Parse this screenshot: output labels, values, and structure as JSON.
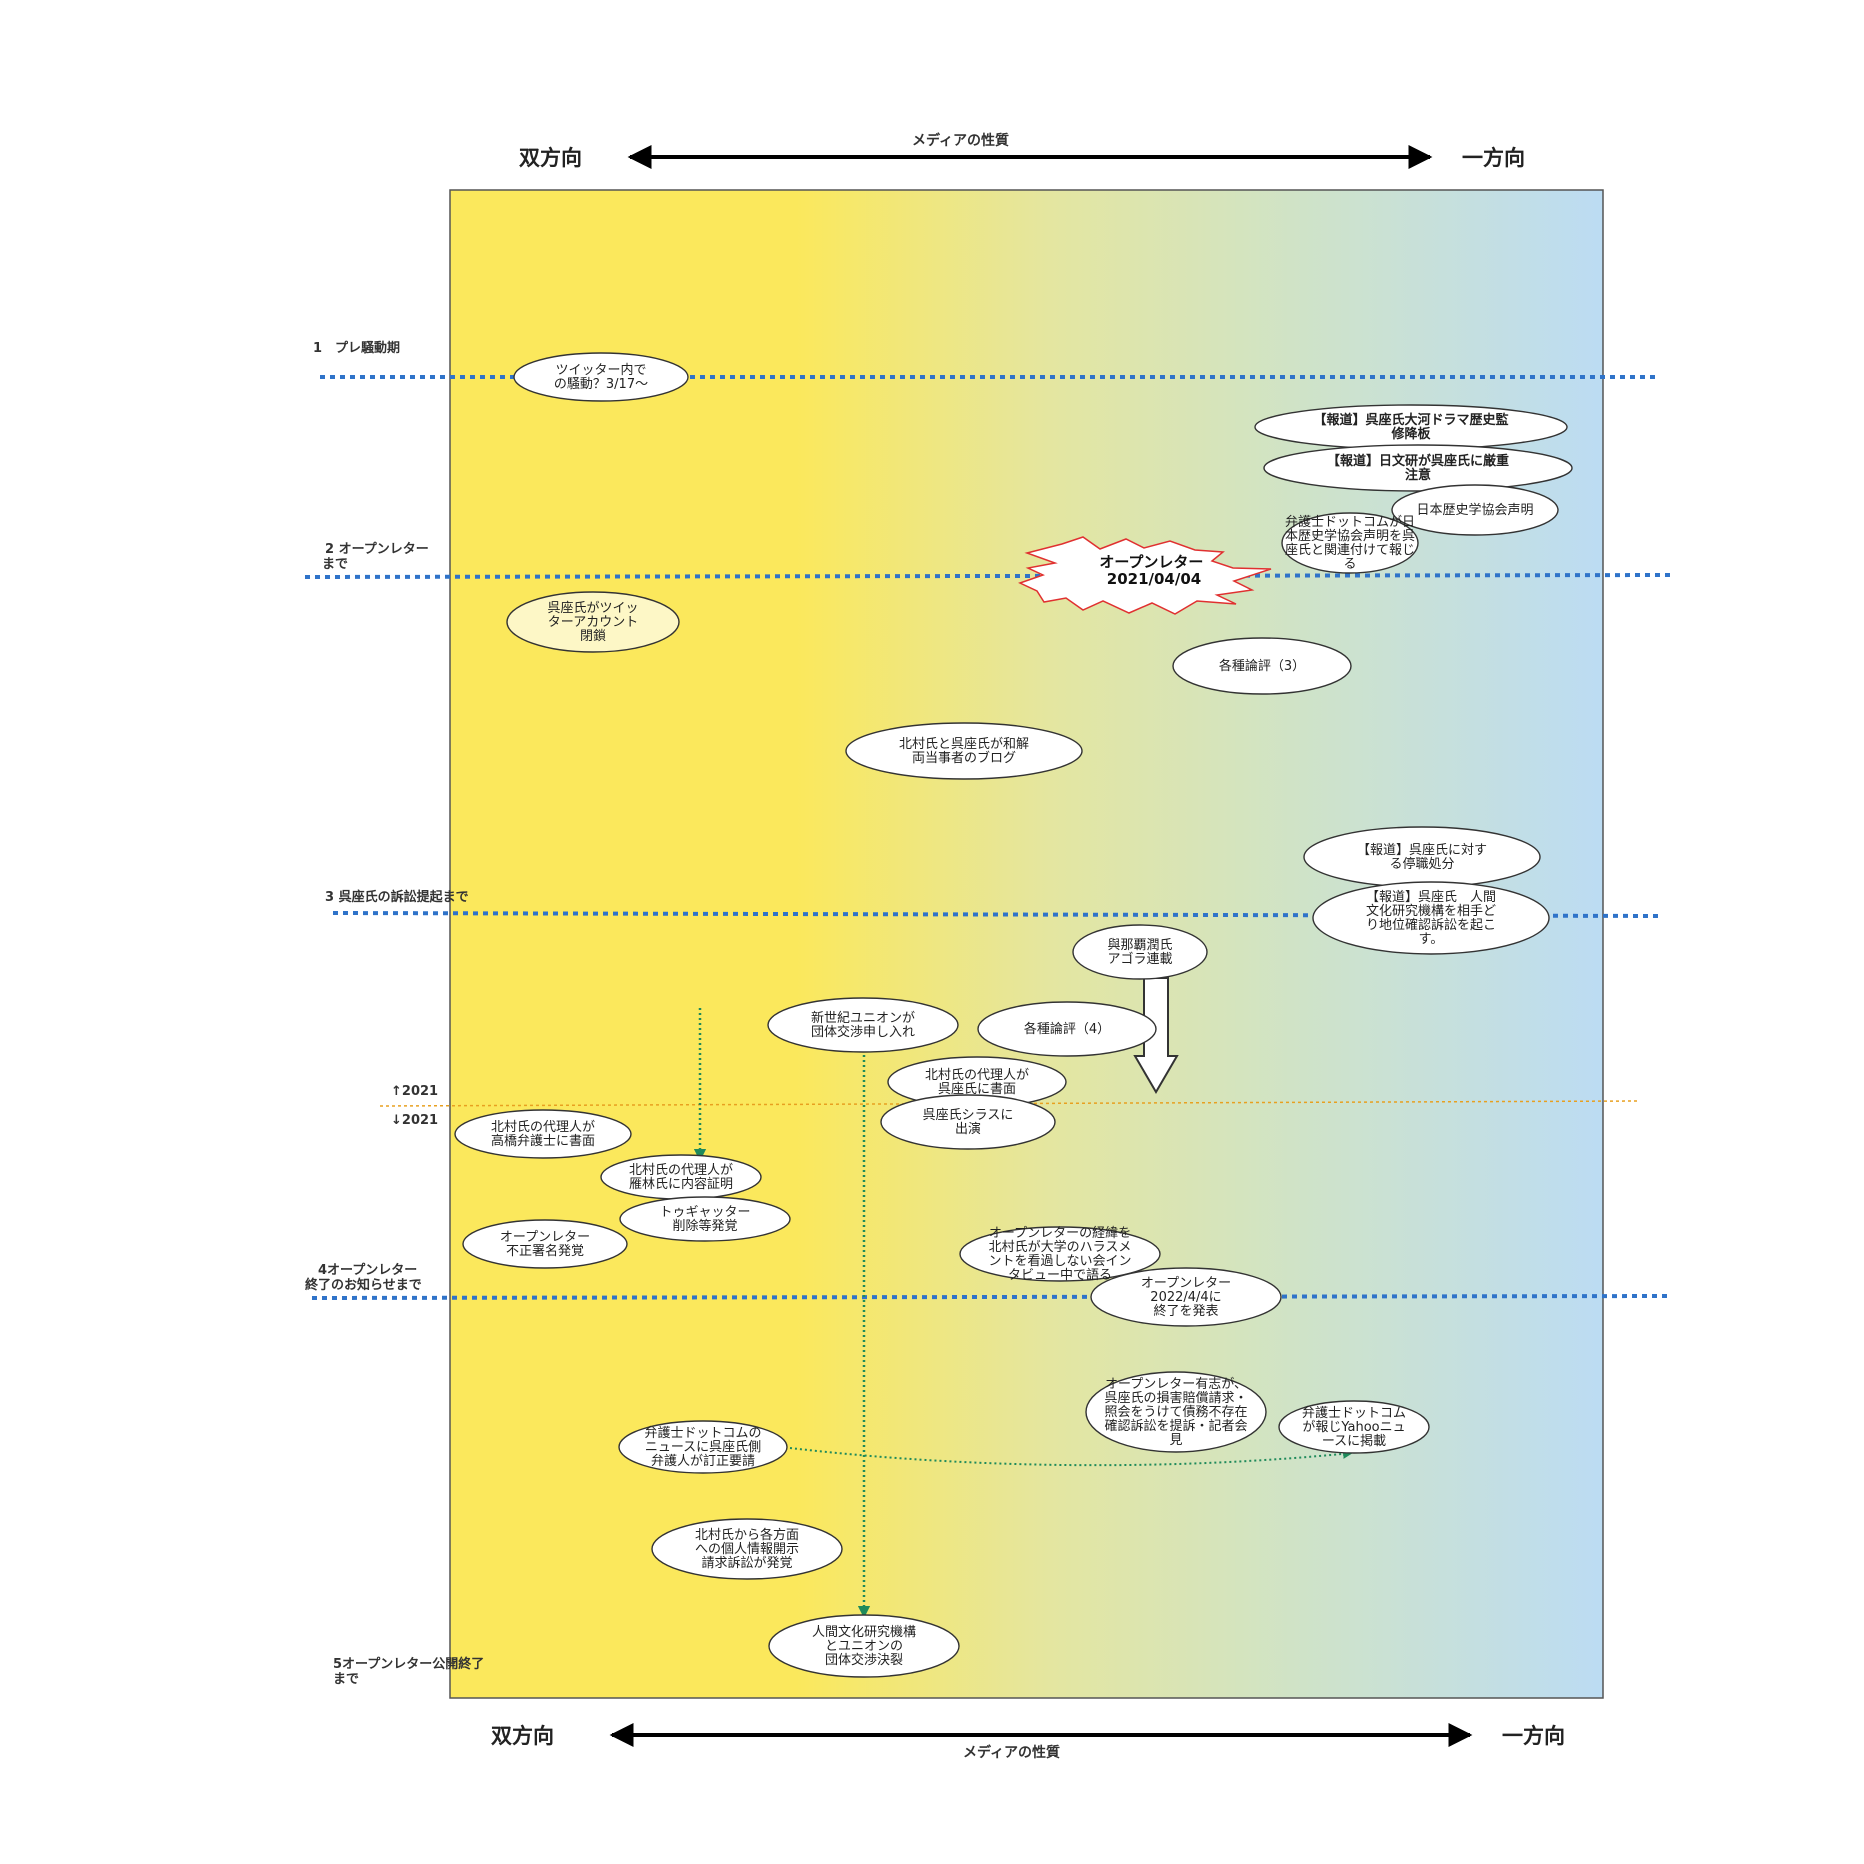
{
  "axis": {
    "top": {
      "left": "双方向",
      "right": "一方向",
      "middle": "メディアの性質"
    },
    "bottom": {
      "left": "双方向",
      "right": "一方向",
      "middle": "メディアの性質"
    }
  },
  "colors": {
    "two_way": "#fbe85c",
    "one_way": "#bfdff3",
    "phase_line": "#2f73c9",
    "year_line": "#e8a020",
    "flow_arrow": "#1f8a5b"
  },
  "phases": [
    {
      "id": "p1",
      "label": [
        "1　プレ騒動期"
      ]
    },
    {
      "id": "p2",
      "label": [
        "2 オープンレター",
        "まで"
      ]
    },
    {
      "id": "p3",
      "label": [
        "3 呉座氏の訴訟提起まで"
      ]
    },
    {
      "id": "p4",
      "label": [
        "4オープンレター",
        "終了のお知らせまで"
      ]
    },
    {
      "id": "p5",
      "label": [
        "5オープンレター公開終了",
        "まで"
      ]
    }
  ],
  "year_marker": {
    "above": "↑2021",
    "below": "↓2021"
  },
  "highlight": {
    "lines": [
      "オープンレター",
      "2021/04/04"
    ]
  },
  "events": [
    {
      "id": "twitter-commotion",
      "lines": [
        "ツイッター内で",
        "の騒動？3/17〜"
      ]
    },
    {
      "id": "report-drama",
      "lines": [
        "【報道】呉座氏大河ドラマ歴史監",
        "修降板"
      ],
      "bold": true
    },
    {
      "id": "report-nichibunken",
      "lines": [
        "【報道】日文研が呉座氏に厳重",
        "注意"
      ],
      "bold": true
    },
    {
      "id": "history-society",
      "lines": [
        "日本歴史学協会声明"
      ]
    },
    {
      "id": "bengoshi-dotcom-1",
      "lines": [
        "弁護士ドットコムが日",
        "本歴史学協会声明を呉",
        "座氏と関連付けて報じ",
        "る"
      ]
    },
    {
      "id": "twitter-closed",
      "lines": [
        "呉座氏がツイッ",
        "ターアカウント",
        "閉鎖"
      ]
    },
    {
      "id": "commentary-3",
      "lines": [
        "各種論評（3）"
      ]
    },
    {
      "id": "settlement",
      "lines": [
        "北村氏と呉座氏が和解",
        "両当事者のブログ"
      ]
    },
    {
      "id": "report-suspension",
      "lines": [
        "【報道】呉座氏に対す",
        "る停職処分"
      ]
    },
    {
      "id": "report-lawsuit",
      "lines": [
        "【報道】呉座氏　人間",
        "文化研究機構を相手ど",
        "り地位確認訴訟を起こ",
        "す。"
      ]
    },
    {
      "id": "yonaha-agora",
      "lines": [
        "與那覇潤氏",
        "アゴラ連載"
      ]
    },
    {
      "id": "union",
      "lines": [
        "新世紀ユニオンが",
        "団体交渉申し入れ"
      ]
    },
    {
      "id": "commentary-4",
      "lines": [
        "各種論評（4）"
      ]
    },
    {
      "id": "agent-letter-goza",
      "lines": [
        "北村氏の代理人が",
        "呉座氏に書面"
      ]
    },
    {
      "id": "shirasu",
      "lines": [
        "呉座氏シラスに",
        "出演"
      ]
    },
    {
      "id": "agent-letter-takahashi",
      "lines": [
        "北村氏の代理人が",
        "高橋弁護士に書面"
      ]
    },
    {
      "id": "agent-certified-karibayashi",
      "lines": [
        "北村氏の代理人が",
        "雁林氏に内容証明"
      ]
    },
    {
      "id": "togetter",
      "lines": [
        "トゥギャッター",
        "削除等発覚"
      ]
    },
    {
      "id": "fraudulent-signatures",
      "lines": [
        "オープンレター",
        "不正署名発覚"
      ]
    },
    {
      "id": "interview",
      "lines": [
        "オープンレターの経緯を",
        "北村氏が大学のハラスメ",
        "ントを看過しない会イン",
        "タビュー中で語る"
      ]
    },
    {
      "id": "letter-end-announce",
      "lines": [
        "オープンレター",
        "2022/4/4に",
        "終了を発表"
      ]
    },
    {
      "id": "volunteers-suit",
      "lines": [
        "オープンレター有志が、",
        "呉座氏の損害賠償請求・",
        "照会をうけて債務不存在",
        "確認訴訟を提訴・記者会",
        "見"
      ]
    },
    {
      "id": "yahoo-news",
      "lines": [
        "弁護士ドットコム",
        "が報じYahooニュ",
        "ースに掲載"
      ]
    },
    {
      "id": "correction-request",
      "lines": [
        "弁護士ドットコムの",
        "ニュースに呉座氏側",
        "弁護人が訂正要請"
      ]
    },
    {
      "id": "disclosure-suits",
      "lines": [
        "北村氏から各方面",
        "への個人情報開示",
        "請求訴訟が発覚"
      ]
    },
    {
      "id": "negotiation-breakdown",
      "lines": [
        "人間文化研究機構",
        "とユニオンの",
        "団体交渉決裂"
      ]
    }
  ]
}
